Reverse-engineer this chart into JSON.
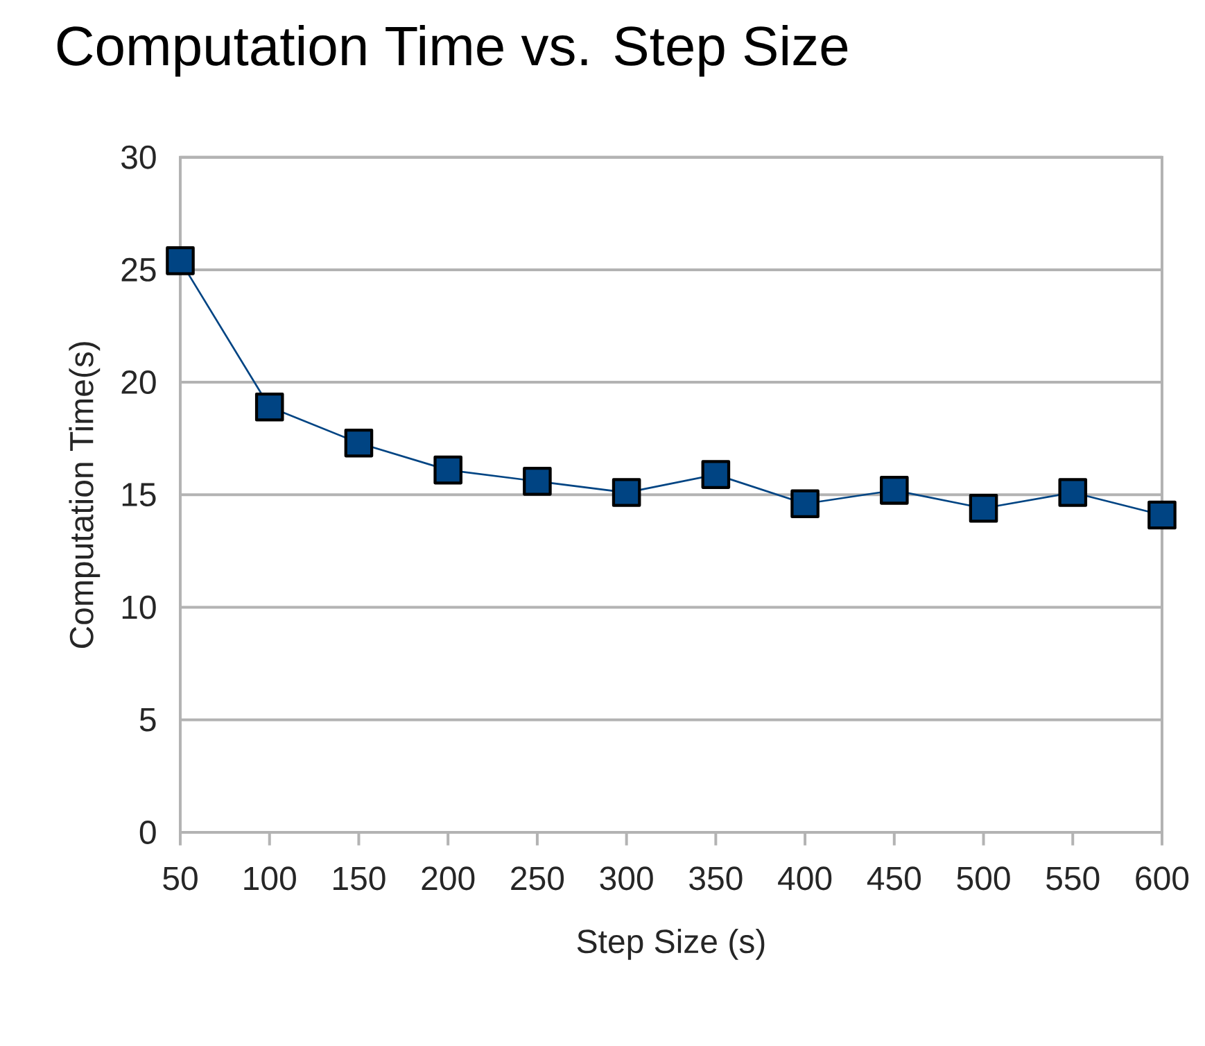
{
  "chart_data": {
    "type": "line",
    "title": "Computation Time vs. Step Size",
    "xlabel": "Step Size (s)",
    "ylabel": "Computation Time(s)",
    "categories": [
      "50",
      "100",
      "150",
      "200",
      "250",
      "300",
      "350",
      "400",
      "450",
      "500",
      "550",
      "600"
    ],
    "series": [
      {
        "color": "#004483",
        "values": [
          25.4,
          18.9,
          17.3,
          16.1,
          15.6,
          15.1,
          15.9,
          14.6,
          15.2,
          14.4,
          15.1,
          14.1
        ]
      }
    ],
    "ylim": [
      0,
      30
    ],
    "yticks": [
      0,
      5,
      10,
      15,
      20,
      25,
      30
    ],
    "grid": "y",
    "marker": "square",
    "line_style": "solid"
  }
}
